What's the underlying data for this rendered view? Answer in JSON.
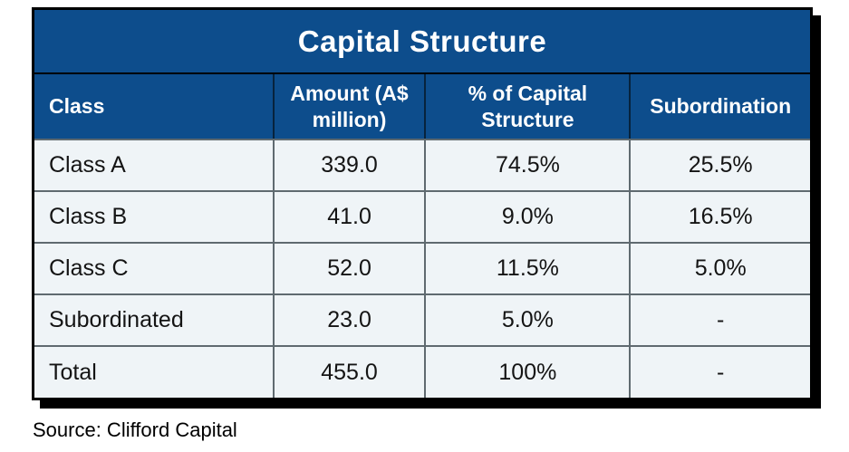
{
  "chart_data": {
    "type": "table",
    "title": "Capital Structure",
    "columns": [
      "Class",
      "Amount (A$ million)",
      "% of Capital Structure",
      "Subordination"
    ],
    "rows": [
      {
        "class": "Class A",
        "amount": "339.0",
        "pct_of_capital": "74.5%",
        "subordination": "25.5%"
      },
      {
        "class": "Class B",
        "amount": "41.0",
        "pct_of_capital": "9.0%",
        "subordination": "16.5%"
      },
      {
        "class": "Class C",
        "amount": "52.0",
        "pct_of_capital": "11.5%",
        "subordination": "5.0%"
      },
      {
        "class": "Subordinated",
        "amount": "23.0",
        "pct_of_capital": "5.0%",
        "subordination": "-"
      },
      {
        "class": "Total",
        "amount": "455.0",
        "pct_of_capital": "100%",
        "subordination": "-"
      }
    ],
    "source": "Source: Clifford Capital"
  },
  "colors": {
    "header_blue": "#0d4d8c",
    "row_background": "#eff4f7",
    "grid_line": "#5f6a70",
    "title_text": "#ffffff",
    "body_text": "#141414"
  }
}
